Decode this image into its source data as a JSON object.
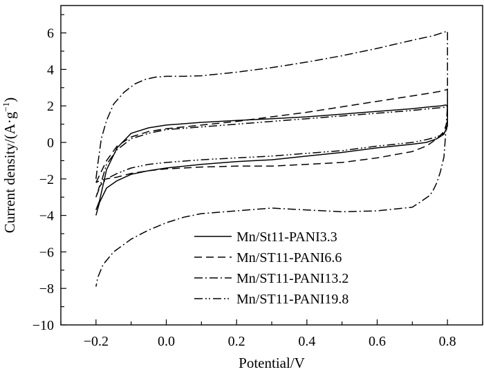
{
  "chart_data": {
    "type": "line",
    "xlabel": "Potential/V",
    "ylabel": "Current density/(A·g",
    "ylabel_sup": "−1",
    "ylabel_close": ")",
    "xlim": [
      -0.3,
      0.9
    ],
    "ylim": [
      -10,
      7.5
    ],
    "x_ticks": [
      -0.2,
      0.0,
      0.2,
      0.4,
      0.6,
      0.8
    ],
    "x_tick_labels": [
      "−0.2",
      "0.0",
      "0.2",
      "0.4",
      "0.6",
      "0.8"
    ],
    "y_ticks": [
      -10,
      -8,
      -6,
      -4,
      -2,
      0,
      2,
      4,
      6
    ],
    "y_tick_labels": [
      "−10",
      "−8",
      "−6",
      "−4",
      "−2",
      "0",
      "2",
      "4",
      "6"
    ],
    "grid": false,
    "legend_position": "bottom-center",
    "colors": {
      "line": "#000000"
    },
    "series": [
      {
        "name": "Mn/St11-PANI3.3",
        "dash": "solid",
        "x": [
          -0.2,
          -0.19,
          -0.17,
          -0.14,
          -0.1,
          -0.05,
          0.0,
          0.1,
          0.2,
          0.3,
          0.4,
          0.5,
          0.6,
          0.7,
          0.75,
          0.78,
          0.795,
          0.8,
          0.8,
          0.8,
          0.79,
          0.77,
          0.74,
          0.7,
          0.6,
          0.5,
          0.4,
          0.3,
          0.2,
          0.1,
          0.0,
          -0.05,
          -0.1,
          -0.14,
          -0.17,
          -0.19,
          -0.2
        ],
        "y": [
          -3.7,
          -3.2,
          -1.5,
          -0.3,
          0.5,
          0.8,
          0.95,
          1.1,
          1.2,
          1.3,
          1.4,
          1.55,
          1.7,
          1.85,
          1.95,
          2.0,
          2.05,
          2.0,
          1.4,
          0.9,
          0.45,
          0.2,
          0.0,
          -0.1,
          -0.3,
          -0.55,
          -0.75,
          -0.95,
          -1.05,
          -1.2,
          -1.4,
          -1.55,
          -1.75,
          -2.1,
          -2.5,
          -3.3,
          -4.0
        ]
      },
      {
        "name": "Mn/ST11-PANI6.6",
        "dash": "dashed",
        "x": [
          -0.2,
          -0.19,
          -0.17,
          -0.14,
          -0.1,
          -0.05,
          0.0,
          0.1,
          0.2,
          0.3,
          0.4,
          0.5,
          0.6,
          0.7,
          0.75,
          0.78,
          0.8,
          0.8,
          0.8,
          0.79,
          0.77,
          0.74,
          0.7,
          0.6,
          0.5,
          0.4,
          0.3,
          0.2,
          0.1,
          0.0,
          -0.05,
          -0.1,
          -0.14,
          -0.17,
          -0.19,
          -0.2
        ],
        "y": [
          -2.2,
          -1.8,
          -1.0,
          -0.2,
          0.3,
          0.6,
          0.75,
          0.95,
          1.15,
          1.4,
          1.65,
          1.95,
          2.25,
          2.55,
          2.7,
          2.8,
          2.9,
          2.0,
          1.2,
          0.6,
          0.2,
          -0.2,
          -0.5,
          -0.85,
          -1.1,
          -1.2,
          -1.3,
          -1.3,
          -1.35,
          -1.45,
          -1.55,
          -1.7,
          -1.9,
          -2.0,
          -2.1,
          -2.2
        ]
      },
      {
        "name": "Mn/ST11-PANI13.2",
        "dash": "dashdot",
        "x": [
          -0.2,
          -0.195,
          -0.185,
          -0.17,
          -0.15,
          -0.12,
          -0.09,
          -0.06,
          -0.03,
          0.0,
          0.05,
          0.1,
          0.2,
          0.3,
          0.4,
          0.5,
          0.6,
          0.7,
          0.76,
          0.8,
          0.8,
          0.795,
          0.79,
          0.78,
          0.77,
          0.76,
          0.75,
          0.72,
          0.7,
          0.6,
          0.5,
          0.4,
          0.3,
          0.2,
          0.1,
          0.05,
          0.0,
          -0.05,
          -0.1,
          -0.15,
          -0.18,
          -0.195,
          -0.2
        ],
        "y": [
          -2.0,
          -1.2,
          0.2,
          1.2,
          2.1,
          2.75,
          3.2,
          3.45,
          3.58,
          3.62,
          3.62,
          3.65,
          3.85,
          4.1,
          4.4,
          4.75,
          5.15,
          5.6,
          5.85,
          6.1,
          2.0,
          0.5,
          -0.8,
          -1.6,
          -2.2,
          -2.6,
          -2.9,
          -3.3,
          -3.55,
          -3.75,
          -3.8,
          -3.7,
          -3.6,
          -3.75,
          -3.9,
          -4.1,
          -4.4,
          -4.8,
          -5.3,
          -6.0,
          -6.7,
          -7.4,
          -7.9
        ]
      },
      {
        "name": "Mn/ST11-PANI19.8",
        "dash": "dashdotdot",
        "x": [
          -0.2,
          -0.19,
          -0.17,
          -0.14,
          -0.1,
          -0.05,
          0.0,
          0.1,
          0.2,
          0.3,
          0.4,
          0.5,
          0.6,
          0.7,
          0.75,
          0.78,
          0.8,
          0.8,
          0.8,
          0.79,
          0.77,
          0.74,
          0.7,
          0.6,
          0.5,
          0.4,
          0.3,
          0.2,
          0.1,
          0.0,
          -0.05,
          -0.1,
          -0.14,
          -0.17,
          -0.19,
          -0.2
        ],
        "y": [
          -3.0,
          -2.5,
          -1.2,
          -0.4,
          0.2,
          0.5,
          0.7,
          0.85,
          1.0,
          1.15,
          1.3,
          1.45,
          1.6,
          1.75,
          1.85,
          1.9,
          1.95,
          1.2,
          0.8,
          0.5,
          0.3,
          0.15,
          0.0,
          -0.2,
          -0.45,
          -0.6,
          -0.75,
          -0.85,
          -0.95,
          -1.1,
          -1.2,
          -1.4,
          -1.7,
          -2.0,
          -2.4,
          -3.0
        ]
      }
    ]
  }
}
